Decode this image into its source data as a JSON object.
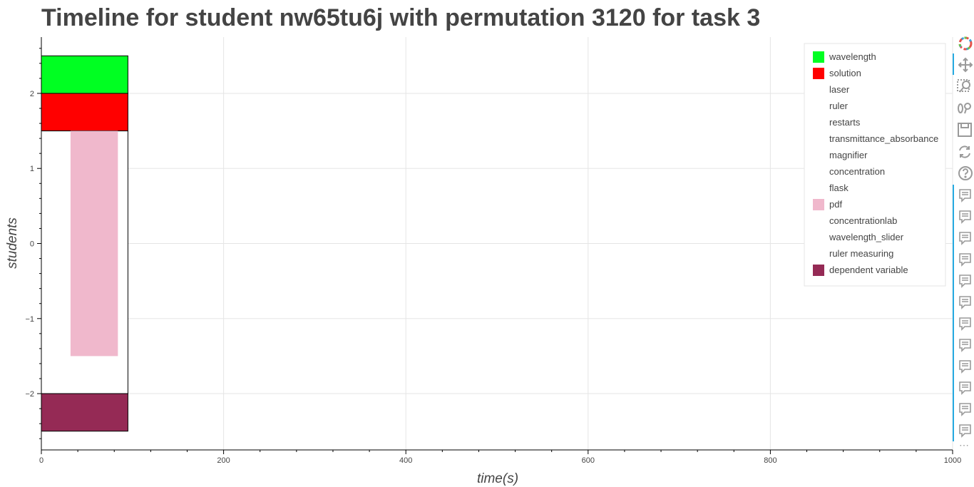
{
  "chart_data": {
    "type": "bar",
    "title": "Timeline for student nw65tu6j with permutation 3120 for task 3",
    "xlabel": "time(s)",
    "ylabel": "students",
    "xlim": [
      0,
      1000
    ],
    "ylim": [
      -2.75,
      2.75
    ],
    "xticks": [
      0,
      200,
      400,
      600,
      800,
      1000
    ],
    "xtick_labels": [
      "0",
      "200",
      "400",
      "600",
      "800",
      "1000"
    ],
    "yticks": [
      2,
      1,
      0,
      -1,
      -2
    ],
    "ytick_labels": [
      "2",
      "1",
      "0",
      "−1",
      "−2"
    ],
    "grid": true,
    "legend_position": "top-right",
    "legend": [
      {
        "label": "wavelength",
        "color": "#00ff22"
      },
      {
        "label": "solution",
        "color": "#ff0000"
      },
      {
        "label": "laser",
        "color": null
      },
      {
        "label": "ruler",
        "color": null
      },
      {
        "label": "restarts",
        "color": null
      },
      {
        "label": "transmittance_absorbance",
        "color": null
      },
      {
        "label": "magnifier",
        "color": null
      },
      {
        "label": "concentration",
        "color": null
      },
      {
        "label": "flask",
        "color": null
      },
      {
        "label": "pdf",
        "color": "#f0b8cc"
      },
      {
        "label": "concentrationlab",
        "color": null
      },
      {
        "label": "wavelength_slider",
        "color": null
      },
      {
        "label": "ruler measuring",
        "color": null
      },
      {
        "label": "dependent variable",
        "color": "#952a55"
      }
    ],
    "bars": [
      {
        "series": "wavelength",
        "x_start": 0,
        "x_end": 95,
        "y_bottom": 2.0,
        "y_top": 2.5,
        "color": "#00ff22",
        "outline": true
      },
      {
        "series": "solution",
        "x_start": 0,
        "x_end": 95,
        "y_bottom": 1.5,
        "y_top": 2.0,
        "color": "#ff0000",
        "outline": true
      },
      {
        "series": "restarts",
        "x_start": 0,
        "x_end": 95,
        "y_bottom": -2.0,
        "y_top": 1.5,
        "color": "#ffffff",
        "outline": true
      },
      {
        "series": "pdf",
        "x_start": 32,
        "x_end": 84,
        "y_bottom": -1.5,
        "y_top": 1.5,
        "color": "#f0b8cc",
        "outline": false
      },
      {
        "series": "dependent variable",
        "x_start": 0,
        "x_end": 95,
        "y_bottom": -2.5,
        "y_top": -2.0,
        "color": "#952a55",
        "outline": true
      }
    ]
  },
  "toolbar": {
    "tools": [
      "bokeh-logo-icon",
      "pan-icon",
      "box-zoom-icon",
      "wheel-zoom-icon",
      "save-icon",
      "reset-icon",
      "help-icon"
    ],
    "hover_tool_count": 12,
    "overflow_glyph": "⋯"
  }
}
